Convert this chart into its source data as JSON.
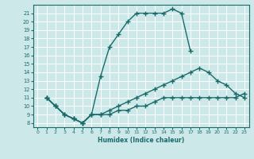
{
  "xlabel": "Humidex (Indice chaleur)",
  "bg_color": "#cde8e8",
  "line_color": "#1a6b6b",
  "grid_color": "#ffffff",
  "xlim": [
    -0.5,
    23.5
  ],
  "ylim": [
    7.5,
    22
  ],
  "xticks": [
    0,
    1,
    2,
    3,
    4,
    5,
    6,
    7,
    8,
    9,
    10,
    11,
    12,
    13,
    14,
    15,
    16,
    17,
    18,
    19,
    20,
    21,
    22,
    23
  ],
  "yticks": [
    8,
    9,
    10,
    11,
    12,
    13,
    14,
    15,
    16,
    17,
    18,
    19,
    20,
    21
  ],
  "c1x": [
    1,
    2,
    3,
    4,
    5,
    6,
    7,
    8,
    9,
    10,
    11,
    12,
    13,
    14,
    15,
    16,
    17
  ],
  "c1y": [
    11,
    10,
    9,
    8.5,
    8,
    9,
    13.5,
    17,
    18.5,
    20,
    21,
    21,
    21,
    21,
    21.5,
    21,
    16.5
  ],
  "c2x": [
    1,
    2,
    3,
    4,
    5,
    6,
    7,
    8,
    9,
    10,
    11,
    12,
    13,
    14,
    15,
    16,
    17,
    18,
    19,
    20,
    21,
    22,
    23
  ],
  "c2y": [
    11,
    10,
    9,
    8.5,
    8,
    9,
    9,
    9.5,
    10,
    10.5,
    11,
    11.5,
    12,
    12.5,
    13,
    13.5,
    14,
    14.5,
    14,
    13,
    12.5,
    11.5,
    11
  ],
  "c3x": [
    1,
    2,
    3,
    4,
    5,
    6,
    7,
    8,
    9,
    10,
    11,
    12,
    13,
    14,
    15,
    16,
    17,
    18,
    19,
    20,
    21,
    22,
    23
  ],
  "c3y": [
    11,
    10,
    9,
    8.5,
    8,
    9,
    9,
    9,
    9.5,
    9.5,
    10,
    10,
    10.5,
    11,
    11,
    11,
    11,
    11,
    11,
    11,
    11,
    11,
    11.5
  ]
}
